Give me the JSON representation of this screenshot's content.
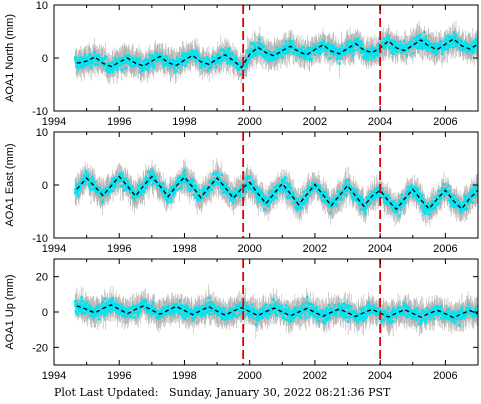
{
  "footer": {
    "label": "Plot Last Updated:",
    "timestamp": "Sunday, January 30, 2022 08:21:36 PST"
  },
  "colors": {
    "points": "#00e5f0",
    "error_bars": "#b4b4b4",
    "model": "#000000",
    "event_lines": "#dd0000"
  },
  "chart_data": [
    {
      "type": "scatter",
      "ylabel": "AOA1 North (mm)",
      "xlim": [
        1994,
        2007
      ],
      "ylim": [
        -10,
        10
      ],
      "xticks": [
        1994,
        1996,
        1998,
        2000,
        2002,
        2004,
        2006
      ],
      "yticks": [
        -10,
        0,
        10
      ],
      "event_lines": [
        1999.8,
        2004.0
      ],
      "model_curve": [
        [
          1994.7,
          -1.0
        ],
        [
          1995.0,
          -0.6
        ],
        [
          1995.25,
          0.2
        ],
        [
          1995.5,
          -1.0
        ],
        [
          1995.75,
          -1.6
        ],
        [
          1996.0,
          -0.8
        ],
        [
          1996.25,
          0.0
        ],
        [
          1996.5,
          -1.0
        ],
        [
          1996.75,
          -1.5
        ],
        [
          1997.0,
          -0.6
        ],
        [
          1997.25,
          0.3
        ],
        [
          1997.5,
          -0.9
        ],
        [
          1997.75,
          -1.4
        ],
        [
          1998.0,
          -0.4
        ],
        [
          1998.25,
          0.5
        ],
        [
          1998.5,
          -0.7
        ],
        [
          1998.75,
          -1.2
        ],
        [
          1999.0,
          -0.2
        ],
        [
          1999.25,
          0.6
        ],
        [
          1999.5,
          -0.5
        ],
        [
          1999.75,
          -1.8
        ],
        [
          2000.0,
          0.7
        ],
        [
          2000.25,
          2.0
        ],
        [
          2000.5,
          1.0
        ],
        [
          2000.75,
          0.4
        ],
        [
          2001.0,
          1.4
        ],
        [
          2001.25,
          2.2
        ],
        [
          2001.5,
          1.2
        ],
        [
          2001.75,
          0.6
        ],
        [
          2002.0,
          1.6
        ],
        [
          2002.25,
          2.5
        ],
        [
          2002.5,
          1.3
        ],
        [
          2002.75,
          0.8
        ],
        [
          2003.0,
          1.8
        ],
        [
          2003.25,
          2.7
        ],
        [
          2003.5,
          1.5
        ],
        [
          2003.75,
          1.0
        ],
        [
          2004.0,
          1.9
        ],
        [
          2004.25,
          3.2
        ],
        [
          2004.5,
          1.9
        ],
        [
          2004.75,
          1.4
        ],
        [
          2005.0,
          2.4
        ],
        [
          2005.25,
          3.4
        ],
        [
          2005.5,
          2.2
        ],
        [
          2005.75,
          1.6
        ],
        [
          2006.0,
          2.6
        ],
        [
          2006.25,
          3.6
        ],
        [
          2006.5,
          2.3
        ],
        [
          2006.75,
          1.7
        ],
        [
          2007.0,
          2.6
        ]
      ]
    },
    {
      "type": "scatter",
      "ylabel": "AOA1 East (mm)",
      "xlim": [
        1994,
        2007
      ],
      "ylim": [
        -10,
        10
      ],
      "xticks": [
        1994,
        1996,
        1998,
        2000,
        2002,
        2004,
        2006
      ],
      "yticks": [
        -10,
        0,
        10
      ],
      "event_lines": [
        1999.8,
        2004.0
      ],
      "model_curve": [
        [
          1994.7,
          -0.8
        ],
        [
          1995.0,
          1.3
        ],
        [
          1995.25,
          -0.3
        ],
        [
          1995.5,
          -2.0
        ],
        [
          1995.75,
          -0.2
        ],
        [
          1996.0,
          1.6
        ],
        [
          1996.25,
          -0.2
        ],
        [
          1996.5,
          -2.1
        ],
        [
          1996.75,
          -0.1
        ],
        [
          1997.0,
          1.6
        ],
        [
          1997.25,
          -0.2
        ],
        [
          1997.5,
          -2.2
        ],
        [
          1997.75,
          -0.2
        ],
        [
          1998.0,
          1.5
        ],
        [
          1998.25,
          -0.4
        ],
        [
          1998.5,
          -2.4
        ],
        [
          1998.75,
          -0.4
        ],
        [
          1999.0,
          1.3
        ],
        [
          1999.25,
          -0.5
        ],
        [
          1999.5,
          -2.5
        ],
        [
          1999.75,
          -0.7
        ],
        [
          2000.0,
          0.5
        ],
        [
          2000.25,
          -1.6
        ],
        [
          2000.5,
          -3.5
        ],
        [
          2000.75,
          -1.6
        ],
        [
          2001.0,
          0.3
        ],
        [
          2001.25,
          -1.7
        ],
        [
          2001.5,
          -3.7
        ],
        [
          2001.75,
          -1.8
        ],
        [
          2002.0,
          0.1
        ],
        [
          2002.25,
          -1.9
        ],
        [
          2002.5,
          -3.9
        ],
        [
          2002.75,
          -2.0
        ],
        [
          2003.0,
          -0.1
        ],
        [
          2003.25,
          -2.1
        ],
        [
          2003.5,
          -4.0
        ],
        [
          2003.75,
          -2.1
        ],
        [
          2004.0,
          -1.0
        ],
        [
          2004.25,
          -3.0
        ],
        [
          2004.5,
          -4.6
        ],
        [
          2004.75,
          -2.6
        ],
        [
          2005.0,
          -0.8
        ],
        [
          2005.25,
          -2.8
        ],
        [
          2005.5,
          -4.5
        ],
        [
          2005.75,
          -2.6
        ],
        [
          2006.0,
          -1.0
        ],
        [
          2006.25,
          -3.0
        ],
        [
          2006.5,
          -4.5
        ],
        [
          2006.75,
          -2.5
        ],
        [
          2007.0,
          -1.0
        ]
      ]
    },
    {
      "type": "scatter",
      "ylabel": "AOA1 Up (mm)",
      "xlim": [
        1994,
        2007
      ],
      "ylim": [
        -30,
        30
      ],
      "xticks": [
        1994,
        1996,
        1998,
        2000,
        2002,
        2004,
        2006
      ],
      "yticks": [
        -20,
        0,
        20
      ],
      "event_lines": [
        1999.8,
        2004.0
      ],
      "model_curve": [
        [
          1994.7,
          3.5
        ],
        [
          1995.0,
          1.5
        ],
        [
          1995.25,
          -0.5
        ],
        [
          1995.5,
          2.0
        ],
        [
          1995.75,
          4.0
        ],
        [
          1996.0,
          1.5
        ],
        [
          1996.25,
          -1.0
        ],
        [
          1996.5,
          1.5
        ],
        [
          1996.75,
          3.5
        ],
        [
          1997.0,
          1.0
        ],
        [
          1997.25,
          -1.2
        ],
        [
          1997.5,
          1.0
        ],
        [
          1997.75,
          3.2
        ],
        [
          1998.0,
          0.8
        ],
        [
          1998.25,
          -1.5
        ],
        [
          1998.5,
          0.8
        ],
        [
          1998.75,
          3.0
        ],
        [
          1999.0,
          0.5
        ],
        [
          1999.25,
          -1.8
        ],
        [
          1999.5,
          0.5
        ],
        [
          1999.75,
          2.5
        ],
        [
          2000.0,
          0.2
        ],
        [
          2000.25,
          -2.0
        ],
        [
          2000.5,
          0.2
        ],
        [
          2000.75,
          2.2
        ],
        [
          2001.0,
          0.0
        ],
        [
          2001.25,
          -2.2
        ],
        [
          2001.5,
          0.0
        ],
        [
          2001.75,
          2.0
        ],
        [
          2002.0,
          -0.2
        ],
        [
          2002.25,
          -2.4
        ],
        [
          2002.5,
          -0.2
        ],
        [
          2002.75,
          1.8
        ],
        [
          2003.0,
          -0.4
        ],
        [
          2003.25,
          -2.6
        ],
        [
          2003.5,
          -0.4
        ],
        [
          2003.75,
          1.5
        ],
        [
          2004.0,
          -0.6
        ],
        [
          2004.25,
          -2.8
        ],
        [
          2004.5,
          -0.6
        ],
        [
          2004.75,
          1.3
        ],
        [
          2005.0,
          -0.8
        ],
        [
          2005.25,
          -3.0
        ],
        [
          2005.5,
          -0.8
        ],
        [
          2005.75,
          1.0
        ],
        [
          2006.0,
          -1.0
        ],
        [
          2006.25,
          -3.2
        ],
        [
          2006.5,
          -1.0
        ],
        [
          2006.75,
          0.8
        ],
        [
          2007.0,
          -1.0
        ]
      ]
    }
  ]
}
